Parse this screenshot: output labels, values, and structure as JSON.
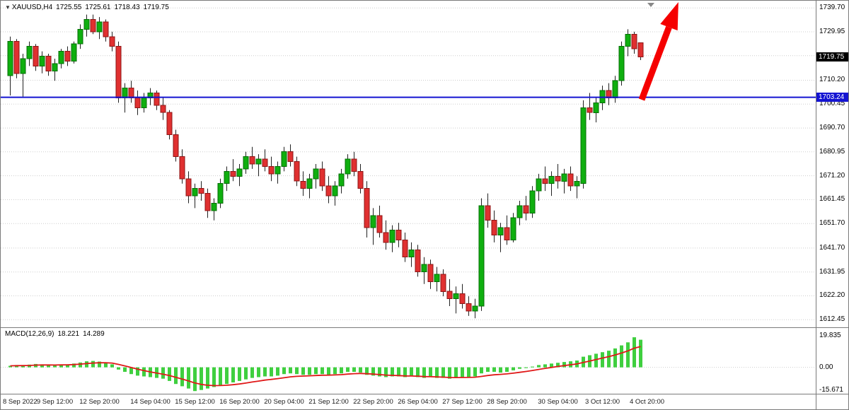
{
  "header": {
    "symbol": "XAUUSD,H4",
    "open": "1725.55",
    "high": "1725.61",
    "low": "1718.43",
    "close": "1719.75"
  },
  "badges": {
    "current": {
      "text": "1719.75",
      "price": 1719.75,
      "bg": "#000000",
      "fg": "#ffffff"
    },
    "line": {
      "text": "1703.24",
      "price": 1703.24,
      "bg": "#1414d2",
      "fg": "#ffffff"
    }
  },
  "annotations": {
    "horizontal_line": {
      "price": 1703.24,
      "color": "#1414d2"
    },
    "arrow": {
      "direction": "up-right",
      "color": "#f50000"
    }
  },
  "colors": {
    "up": "#0faf0f",
    "up_border": "#056d05",
    "down": "#e03030",
    "down_border": "#8d1616",
    "wick": "#222222",
    "macd_bar": "#3fcf3f",
    "signal": "#e01818",
    "grid": "#cdcdcd",
    "text": "#000000"
  },
  "chart_data": [
    {
      "type": "candlestick",
      "title": "XAUUSD,H4",
      "timeframe": "H4",
      "ylim": [
        1610.5,
        1741.5
      ],
      "grid": "horizontal-dotted",
      "legend_position": "none",
      "horizontal_line": 1703.24,
      "current_price": 1719.75,
      "y_ticks": [
        {
          "text": "1739.70",
          "price": 1739.7
        },
        {
          "text": "1729.95",
          "price": 1729.95
        },
        {
          "text": "1710.20",
          "price": 1710.2
        },
        {
          "text": "1700.45",
          "price": 1700.45
        },
        {
          "text": "1690.70",
          "price": 1690.7
        },
        {
          "text": "1680.95",
          "price": 1680.95
        },
        {
          "text": "1671.20",
          "price": 1671.2
        },
        {
          "text": "1661.45",
          "price": 1661.45
        },
        {
          "text": "1651.70",
          "price": 1651.7
        },
        {
          "text": "1641.70",
          "price": 1641.7
        },
        {
          "text": "1631.95",
          "price": 1631.95
        },
        {
          "text": "1622.20",
          "price": 1622.2
        },
        {
          "text": "1612.45",
          "price": 1612.45
        }
      ],
      "extra_grid_prices": [
        1720.2
      ],
      "x_ticks": [
        {
          "text": "8 Sep 2022",
          "i": 0
        },
        {
          "text": "9 Sep 12:00",
          "i": 7
        },
        {
          "text": "12 Sep 20:00",
          "i": 14
        },
        {
          "text": "14 Sep 04:00",
          "i": 22
        },
        {
          "text": "15 Sep 12:00",
          "i": 29
        },
        {
          "text": "16 Sep 20:00",
          "i": 36
        },
        {
          "text": "20 Sep 04:00",
          "i": 43
        },
        {
          "text": "21 Sep 12:00",
          "i": 50
        },
        {
          "text": "22 Sep 20:00",
          "i": 57
        },
        {
          "text": "26 Sep 04:00",
          "i": 64
        },
        {
          "text": "27 Sep 12:00",
          "i": 71
        },
        {
          "text": "28 Sep 20:00",
          "i": 78
        },
        {
          "text": "30 Sep 04:00",
          "i": 86
        },
        {
          "text": "3 Oct 12:00",
          "i": 93
        },
        {
          "text": "4 Oct 20:00",
          "i": 100
        }
      ],
      "candles": [
        [
          1712,
          1728,
          1704,
          1726
        ],
        [
          1726,
          1727,
          1711,
          1713
        ],
        [
          1713,
          1721,
          1703.5,
          1719
        ],
        [
          1719,
          1726,
          1716,
          1724
        ],
        [
          1724,
          1725,
          1714,
          1716
        ],
        [
          1716,
          1722,
          1713,
          1720
        ],
        [
          1720,
          1721,
          1712,
          1714
        ],
        [
          1714,
          1719,
          1710,
          1717
        ],
        [
          1717,
          1723,
          1715,
          1722
        ],
        [
          1722,
          1724,
          1716,
          1718
        ],
        [
          1718,
          1726,
          1717,
          1725
        ],
        [
          1725,
          1733,
          1723,
          1731
        ],
        [
          1731,
          1737,
          1728,
          1735
        ],
        [
          1735,
          1737,
          1729,
          1730
        ],
        [
          1730,
          1736,
          1727,
          1734
        ],
        [
          1734,
          1735,
          1726,
          1728
        ],
        [
          1728,
          1730,
          1722,
          1724
        ],
        [
          1724,
          1726,
          1701,
          1703
        ],
        [
          1703,
          1709,
          1697,
          1707
        ],
        [
          1707,
          1710,
          1701,
          1703
        ],
        [
          1703,
          1706,
          1696,
          1699
        ],
        [
          1699,
          1705,
          1697,
          1703
        ],
        [
          1703,
          1707,
          1700,
          1705
        ],
        [
          1705,
          1706,
          1698,
          1700
        ],
        [
          1700,
          1703,
          1694,
          1697
        ],
        [
          1697,
          1698,
          1686,
          1688
        ],
        [
          1688,
          1690,
          1677,
          1679
        ],
        [
          1679,
          1682,
          1668,
          1670
        ],
        [
          1670,
          1673,
          1660,
          1663
        ],
        [
          1663,
          1668,
          1658,
          1666
        ],
        [
          1666,
          1669,
          1661,
          1664
        ],
        [
          1664,
          1666,
          1654,
          1657
        ],
        [
          1657,
          1662,
          1653,
          1660
        ],
        [
          1660,
          1670,
          1658,
          1668
        ],
        [
          1668,
          1675,
          1665,
          1673
        ],
        [
          1673,
          1678,
          1669,
          1671
        ],
        [
          1671,
          1676,
          1667,
          1674
        ],
        [
          1674,
          1681,
          1672,
          1679
        ],
        [
          1679,
          1683,
          1674,
          1676
        ],
        [
          1676,
          1680,
          1671,
          1678
        ],
        [
          1678,
          1682,
          1673,
          1675
        ],
        [
          1675,
          1679,
          1669,
          1672
        ],
        [
          1672,
          1677,
          1668,
          1675
        ],
        [
          1675,
          1683,
          1673,
          1681
        ],
        [
          1681,
          1684,
          1675,
          1677
        ],
        [
          1677,
          1679,
          1667,
          1669
        ],
        [
          1669,
          1673,
          1663,
          1666
        ],
        [
          1666,
          1672,
          1662,
          1670
        ],
        [
          1670,
          1676,
          1666,
          1674
        ],
        [
          1674,
          1677,
          1665,
          1667
        ],
        [
          1667,
          1671,
          1660,
          1663
        ],
        [
          1663,
          1669,
          1659,
          1667
        ],
        [
          1667,
          1674,
          1664,
          1672
        ],
        [
          1672,
          1680,
          1670,
          1678
        ],
        [
          1678,
          1681,
          1671,
          1673
        ],
        [
          1673,
          1676,
          1664,
          1666
        ],
        [
          1666,
          1669,
          1646,
          1650
        ],
        [
          1650,
          1658,
          1643,
          1655
        ],
        [
          1655,
          1659,
          1646,
          1648
        ],
        [
          1648,
          1653,
          1641,
          1644
        ],
        [
          1644,
          1651,
          1640,
          1649
        ],
        [
          1649,
          1652,
          1642,
          1645
        ],
        [
          1645,
          1648,
          1636,
          1638
        ],
        [
          1638,
          1644,
          1634,
          1641
        ],
        [
          1641,
          1643,
          1630,
          1632
        ],
        [
          1632,
          1638,
          1627,
          1635
        ],
        [
          1635,
          1637,
          1625,
          1628
        ],
        [
          1628,
          1634,
          1624,
          1631
        ],
        [
          1631,
          1633,
          1622,
          1624
        ],
        [
          1624,
          1629,
          1618,
          1621
        ],
        [
          1621,
          1626,
          1615,
          1623
        ],
        [
          1623,
          1627,
          1617,
          1619
        ],
        [
          1619,
          1622,
          1614,
          1616
        ],
        [
          1616,
          1621,
          1613,
          1618
        ],
        [
          1618,
          1662,
          1616,
          1659
        ],
        [
          1659,
          1664,
          1650,
          1653
        ],
        [
          1653,
          1657,
          1644,
          1647
        ],
        [
          1647,
          1652,
          1640,
          1650
        ],
        [
          1650,
          1655,
          1643,
          1645
        ],
        [
          1645,
          1656,
          1644,
          1654
        ],
        [
          1654,
          1661,
          1651,
          1659
        ],
        [
          1659,
          1663,
          1653,
          1656
        ],
        [
          1656,
          1667,
          1654,
          1665
        ],
        [
          1665,
          1672,
          1661,
          1670
        ],
        [
          1670,
          1675,
          1665,
          1668
        ],
        [
          1668,
          1673,
          1663,
          1671
        ],
        [
          1671,
          1676,
          1666,
          1669
        ],
        [
          1669,
          1674,
          1664,
          1672
        ],
        [
          1672,
          1675,
          1665,
          1667
        ],
        [
          1667,
          1671,
          1662,
          1669
        ],
        [
          1668,
          1702,
          1666,
          1699
        ],
        [
          1699,
          1705,
          1694,
          1697
        ],
        [
          1697,
          1703,
          1693,
          1701
        ],
        [
          1701,
          1708,
          1698,
          1706
        ],
        [
          1706,
          1709,
          1700,
          1703
        ],
        [
          1703,
          1712,
          1701,
          1710
        ],
        [
          1710,
          1726,
          1708,
          1724
        ],
        [
          1724,
          1731,
          1720,
          1729
        ],
        [
          1729,
          1730,
          1721,
          1723
        ],
        [
          1725.55,
          1725.61,
          1718.43,
          1719.75
        ]
      ]
    },
    {
      "type": "bar",
      "subtype": "macd-histogram-with-signal-line",
      "title": "MACD(12,26,9)",
      "main_last": "18.221",
      "signal_last": "14.289",
      "ylim": [
        -16.5,
        25.5
      ],
      "axis_tick_labels": [
        "19.835",
        "0.00",
        "-15.671"
      ],
      "axis_tick_values": [
        19.835,
        0,
        -15.671
      ],
      "values": [
        1.0,
        1.5,
        1.2,
        1.8,
        2.2,
        2.0,
        1.6,
        1.4,
        1.8,
        2.0,
        2.5,
        3.2,
        4.0,
        4.2,
        3.8,
        3.0,
        2.0,
        -1.5,
        -3.0,
        -4.5,
        -5.5,
        -6.0,
        -6.5,
        -7.0,
        -7.5,
        -9.0,
        -11.0,
        -12.5,
        -14.0,
        -15.671,
        -15.0,
        -14.0,
        -13.0,
        -12.0,
        -11.0,
        -10.0,
        -9.0,
        -8.0,
        -7.0,
        -6.5,
        -6.0,
        -6.0,
        -5.5,
        -4.5,
        -4.0,
        -4.5,
        -5.0,
        -5.0,
        -4.5,
        -4.5,
        -5.0,
        -4.5,
        -4.0,
        -3.0,
        -3.0,
        -3.5,
        -5.0,
        -5.5,
        -6.0,
        -6.5,
        -6.0,
        -6.0,
        -6.5,
        -6.0,
        -6.5,
        -7.0,
        -6.5,
        -7.0,
        -7.0,
        -7.5,
        -7.0,
        -6.5,
        -6.5,
        -6.0,
        -4.0,
        -3.0,
        -3.0,
        -3.5,
        -3.0,
        -2.0,
        -1.0,
        -0.5,
        0.5,
        1.5,
        2.0,
        2.5,
        3.0,
        3.5,
        4.0,
        4.5,
        7.0,
        8.0,
        9.0,
        10.0,
        11.0,
        12.5,
        14.5,
        16.5,
        19.835,
        18.221
      ]
    }
  ]
}
